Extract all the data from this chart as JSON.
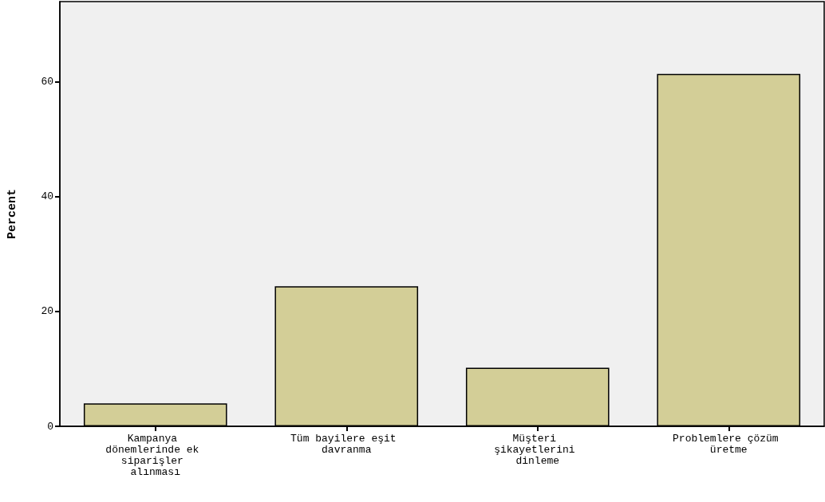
{
  "chart_data": {
    "type": "bar",
    "ylabel": "Percent",
    "categories": [
      "Kampanya dönemlerinde ek siparişler alınması",
      "Tüm bayilere eşit davranma",
      "Müşteri şikayetlerini dinleme",
      "Problemlere çözüm üretme"
    ],
    "values": [
      4.0,
      24.4,
      10.2,
      61.4
    ],
    "color": "#d3ce97",
    "ylim": [
      0,
      74
    ],
    "yticks": [
      0,
      20,
      40,
      60
    ],
    "grid": false
  }
}
